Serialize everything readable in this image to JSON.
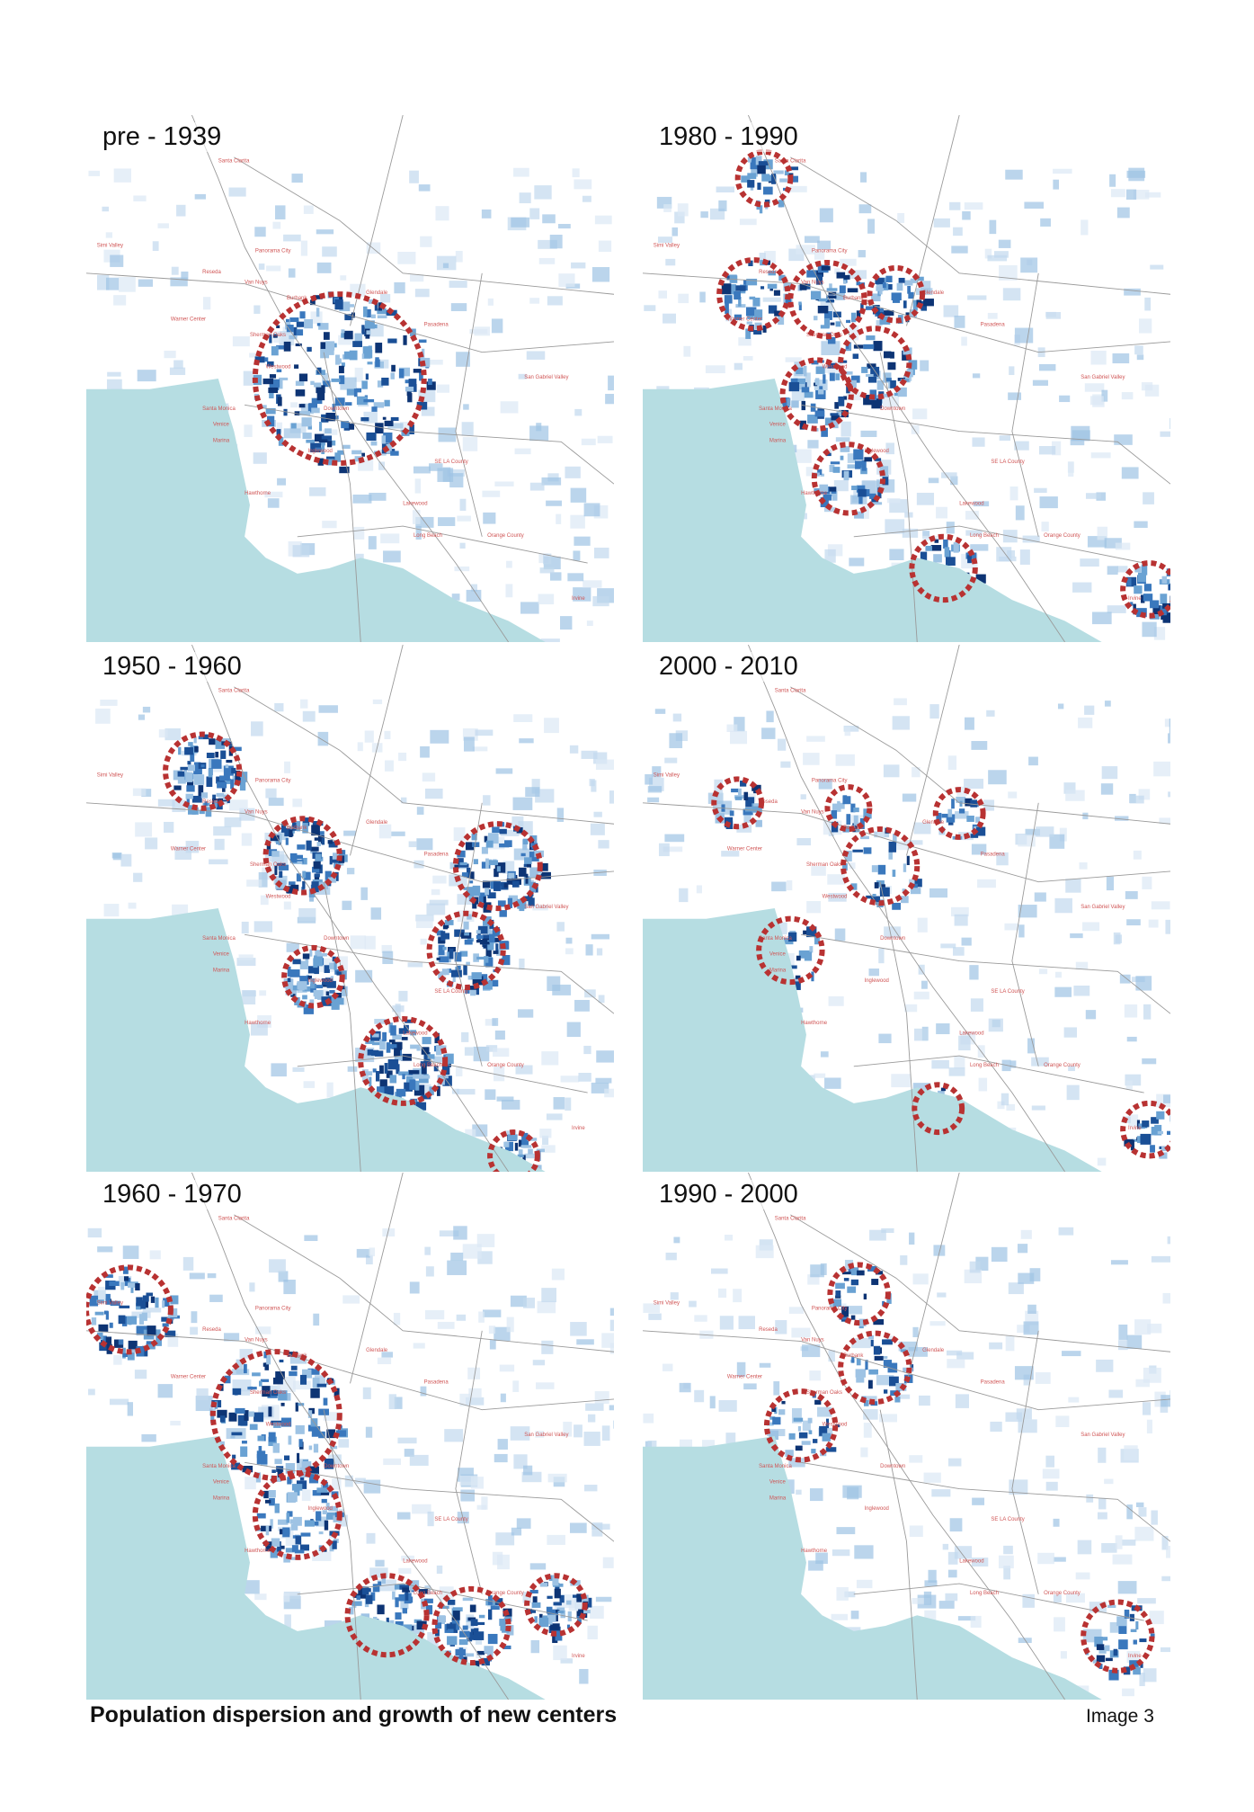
{
  "panels": [
    {
      "title": "pre - 1939"
    },
    {
      "title": "1980 - 1990"
    },
    {
      "title": "1950 - 1960"
    },
    {
      "title": "2000 - 2010"
    },
    {
      "title": "1960 - 1970"
    },
    {
      "title": "1990 - 2000"
    }
  ],
  "map_labels": [
    "Santa Clarita",
    "Simi Valley",
    "Reseda",
    "Panorama City",
    "Van Nuys",
    "Warner Center",
    "Glendale",
    "Burbank",
    "Sherman Oaks",
    "Westwood",
    "Santa Monica",
    "Venice",
    "Marina",
    "Downtown",
    "Pasadena",
    "San Gabriel Valley",
    "Inglewood",
    "SE LA County",
    "Hawthorne",
    "Lakewood",
    "Long Beach",
    "Orange County",
    "Irvine"
  ],
  "caption": "Population dispersion and growth of new centers",
  "image_label": "Image 3"
}
